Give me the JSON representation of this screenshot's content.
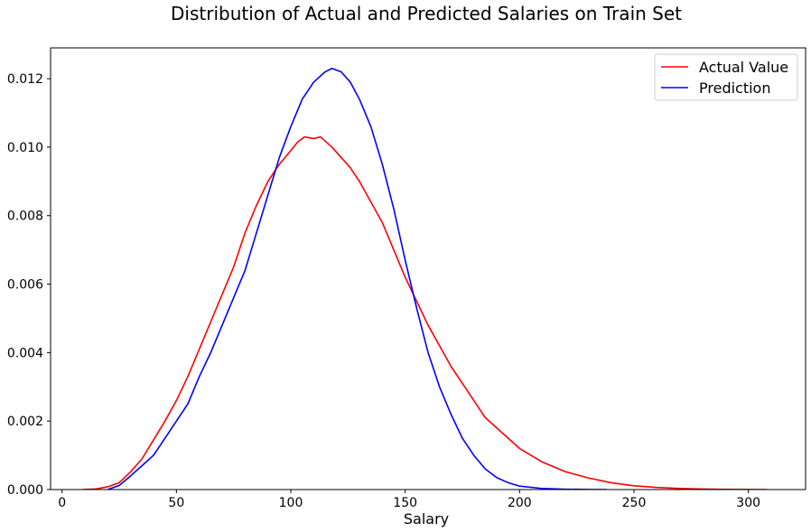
{
  "chart_data": {
    "type": "line",
    "title": "Distribution of Actual and Predicted Salaries on Train Set",
    "xlabel": "Salary",
    "ylabel": "",
    "xlim": [
      -5,
      325
    ],
    "ylim": [
      0,
      0.0129
    ],
    "xticks": [
      0,
      50,
      100,
      150,
      200,
      250,
      300
    ],
    "yticks": [
      0.0,
      0.002,
      0.004,
      0.006,
      0.008,
      0.01,
      0.012
    ],
    "xtick_labels": [
      "0",
      "50",
      "100",
      "150",
      "200",
      "250",
      "300"
    ],
    "ytick_labels": [
      "0.000",
      "0.002",
      "0.004",
      "0.006",
      "0.008",
      "0.010",
      "0.012"
    ],
    "grid": false,
    "legend": "top-right",
    "series": [
      {
        "name": "Actual Value",
        "color": "#ff0000",
        "x": [
          9,
          15,
          20,
          25,
          30,
          35,
          40,
          45,
          50,
          55,
          60,
          65,
          70,
          75,
          80,
          85,
          90,
          95,
          100,
          103,
          106,
          110,
          113,
          118,
          122,
          126,
          130,
          135,
          140,
          145,
          150,
          155,
          160,
          165,
          170,
          175,
          180,
          185,
          190,
          200,
          210,
          220,
          230,
          240,
          250,
          260,
          270,
          280,
          290,
          300,
          308
        ],
        "y": [
          0.0,
          2e-05,
          8e-05,
          0.0002,
          0.00052,
          0.0009,
          0.00145,
          0.002,
          0.0026,
          0.0033,
          0.0041,
          0.0049,
          0.0057,
          0.0065,
          0.0075,
          0.0083,
          0.009,
          0.0095,
          0.0099,
          0.01015,
          0.0103,
          0.01025,
          0.0103,
          0.01,
          0.0097,
          0.0094,
          0.009,
          0.0084,
          0.0078,
          0.007,
          0.0062,
          0.0055,
          0.0048,
          0.0042,
          0.0036,
          0.0031,
          0.0026,
          0.0021,
          0.0018,
          0.0012,
          0.0008,
          0.00052,
          0.00034,
          0.0002,
          0.00011,
          6e-05,
          3e-05,
          1.5e-05,
          6e-06,
          2e-06,
          0.0
        ]
      },
      {
        "name": "Prediction",
        "color": "#0000ff",
        "x": [
          20,
          25,
          30,
          35,
          40,
          45,
          50,
          55,
          60,
          65,
          70,
          75,
          80,
          85,
          90,
          95,
          100,
          105,
          110,
          115,
          118,
          122,
          126,
          130,
          135,
          140,
          145,
          150,
          155,
          160,
          165,
          170,
          175,
          180,
          185,
          190,
          195,
          200,
          210,
          220,
          230,
          238
        ],
        "y": [
          0.0,
          0.00012,
          0.0004,
          0.0007,
          0.001,
          0.0015,
          0.002,
          0.0025,
          0.0033,
          0.004,
          0.0048,
          0.0056,
          0.0064,
          0.0075,
          0.0086,
          0.0097,
          0.0106,
          0.0114,
          0.0119,
          0.0122,
          0.0123,
          0.0122,
          0.0119,
          0.0114,
          0.0106,
          0.0095,
          0.0082,
          0.0067,
          0.0053,
          0.004,
          0.003,
          0.0022,
          0.0015,
          0.001,
          0.0006,
          0.00035,
          0.0002,
          0.0001,
          3e-05,
          1e-05,
          2e-06,
          0.0
        ]
      }
    ]
  }
}
